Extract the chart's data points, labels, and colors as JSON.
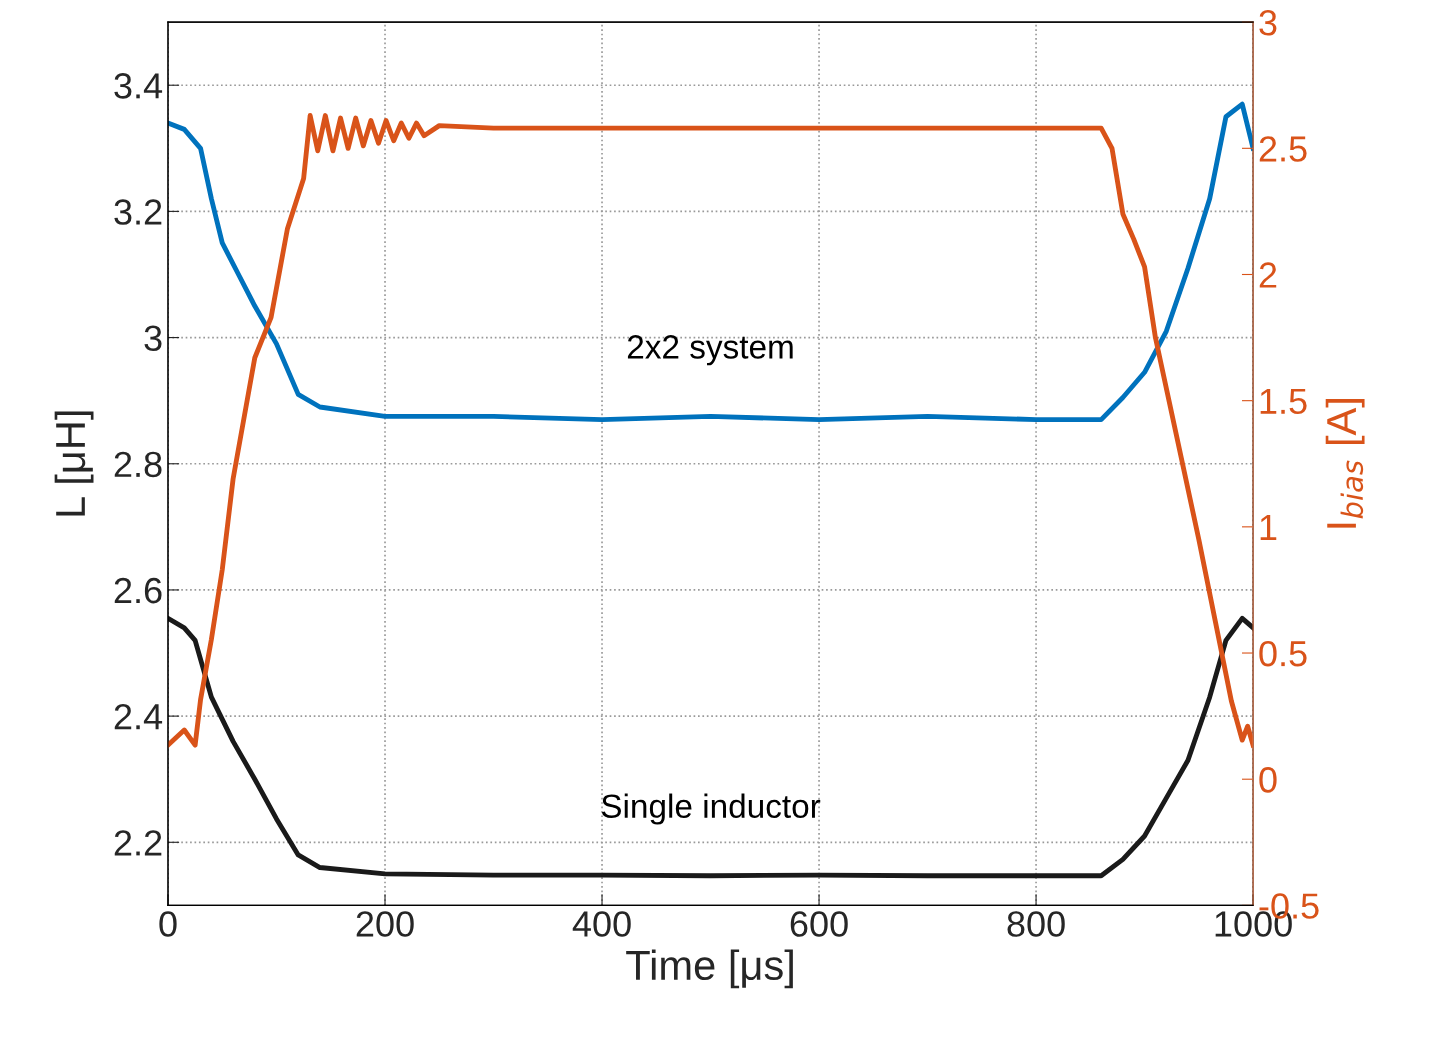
{
  "chart_data": {
    "type": "line",
    "xlabel": "Time [μs]",
    "ylabel": "L [μH]",
    "y2label": "I$_{bias}$ [A]",
    "xlim": [
      0,
      1000
    ],
    "xticks": [
      0,
      200,
      400,
      600,
      800,
      1000
    ],
    "ylim": [
      2.1,
      3.5
    ],
    "yticks": [
      2.2,
      2.4,
      2.6,
      2.8,
      3,
      3.2,
      3.4
    ],
    "y2lim": [
      -0.5,
      3
    ],
    "y2ticks": [
      -0.5,
      0,
      0.5,
      1,
      1.5,
      2,
      2.5,
      3
    ],
    "grid": true,
    "line_style": "solid",
    "marker": "none",
    "series": [
      {
        "name": "2x2 system",
        "color": "#0072bd",
        "x": [
          0,
          15,
          30,
          40,
          50,
          65,
          80,
          100,
          120,
          140,
          200,
          300,
          400,
          500,
          600,
          700,
          800,
          860,
          880,
          900,
          920,
          940,
          960,
          975,
          990,
          1000
        ],
        "values": [
          3.34,
          3.33,
          3.3,
          3.22,
          3.15,
          3.1,
          3.05,
          2.99,
          2.91,
          2.89,
          2.875,
          2.875,
          2.87,
          2.875,
          2.87,
          2.875,
          2.87,
          2.87,
          2.905,
          2.945,
          3.01,
          3.11,
          3.22,
          3.35,
          3.37,
          3.3
        ]
      },
      {
        "name": "Single inductor",
        "color": "#1a1a1a",
        "x": [
          0,
          15,
          25,
          40,
          60,
          80,
          100,
          120,
          140,
          200,
          300,
          400,
          500,
          600,
          700,
          800,
          860,
          880,
          900,
          920,
          940,
          960,
          975,
          990,
          1000
        ],
        "values": [
          2.555,
          2.54,
          2.52,
          2.43,
          2.36,
          2.3,
          2.237,
          2.18,
          2.16,
          2.15,
          2.148,
          2.148,
          2.147,
          2.148,
          2.147,
          2.147,
          2.147,
          2.173,
          2.21,
          2.27,
          2.33,
          2.43,
          2.52,
          2.555,
          2.54
        ]
      },
      {
        "color": "#d95319",
        "axis": "y2",
        "x": [
          0,
          15,
          25,
          30,
          40,
          50,
          60,
          80,
          95,
          110,
          125,
          131,
          138,
          145,
          152,
          159,
          166,
          173,
          180,
          187,
          194,
          201,
          208,
          215,
          222,
          229,
          236,
          250,
          300,
          400,
          500,
          600,
          700,
          800,
          860,
          870,
          880,
          890,
          900,
          910,
          930,
          950,
          965,
          980,
          990,
          995,
          1000
        ],
        "values": [
          0.135,
          0.195,
          0.135,
          0.315,
          0.554,
          0.83,
          1.19,
          1.67,
          1.83,
          2.18,
          2.38,
          2.63,
          2.49,
          2.63,
          2.49,
          2.62,
          2.5,
          2.62,
          2.51,
          2.61,
          2.52,
          2.61,
          2.53,
          2.6,
          2.54,
          2.6,
          2.55,
          2.59,
          2.58,
          2.58,
          2.58,
          2.58,
          2.58,
          2.58,
          2.58,
          2.5,
          2.24,
          2.14,
          2.03,
          1.75,
          1.35,
          0.95,
          0.63,
          0.31,
          0.155,
          0.21,
          0.135
        ]
      }
    ]
  }
}
